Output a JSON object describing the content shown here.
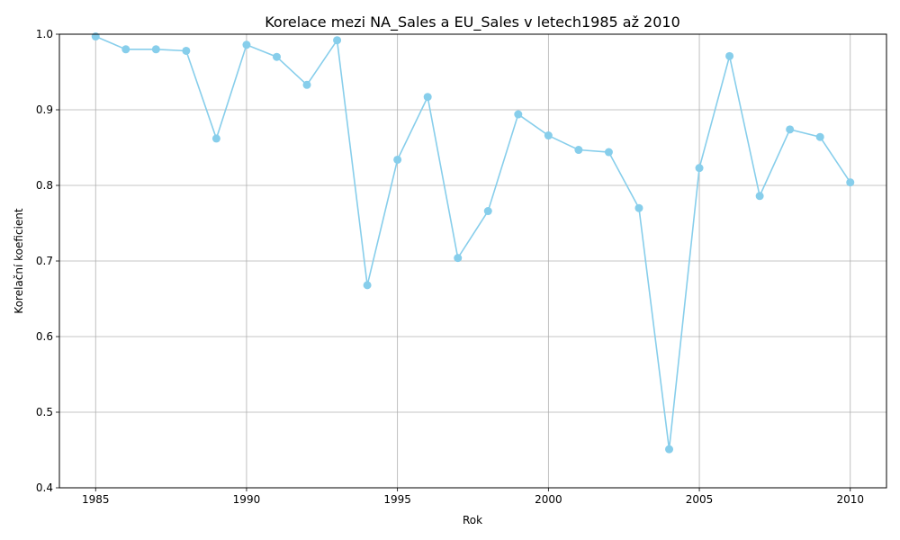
{
  "chart_data": {
    "type": "line",
    "title": "Korelace mezi NA_Sales a EU_Sales v letech1985 až 2010",
    "xlabel": "Rok",
    "ylabel": "Korelační koeficient",
    "xlim": [
      1983.8,
      2011.2
    ],
    "ylim": [
      0.4,
      1.0
    ],
    "x_ticks": [
      1985,
      1990,
      1995,
      2000,
      2005,
      2010
    ],
    "x_tick_labels": [
      "1985",
      "1990",
      "1995",
      "2000",
      "2005",
      "2010"
    ],
    "y_ticks": [
      0.4,
      0.5,
      0.6,
      0.7,
      0.8,
      0.9,
      1.0
    ],
    "y_tick_labels": [
      "0.4",
      "0.5",
      "0.6",
      "0.7",
      "0.8",
      "0.9",
      "1.0"
    ],
    "grid": true,
    "color": "#87ceeb",
    "x": [
      1985,
      1986,
      1987,
      1988,
      1989,
      1990,
      1991,
      1992,
      1993,
      1994,
      1995,
      1996,
      1997,
      1998,
      1999,
      2000,
      2001,
      2002,
      2003,
      2004,
      2005,
      2006,
      2007,
      2008,
      2009,
      2010
    ],
    "y": [
      0.997,
      0.98,
      0.98,
      0.978,
      0.862,
      0.986,
      0.97,
      0.933,
      0.992,
      0.668,
      0.834,
      0.917,
      0.704,
      0.766,
      0.894,
      0.866,
      0.847,
      0.844,
      0.77,
      0.451,
      0.823,
      0.971,
      0.786,
      0.874,
      0.864,
      0.804
    ]
  }
}
